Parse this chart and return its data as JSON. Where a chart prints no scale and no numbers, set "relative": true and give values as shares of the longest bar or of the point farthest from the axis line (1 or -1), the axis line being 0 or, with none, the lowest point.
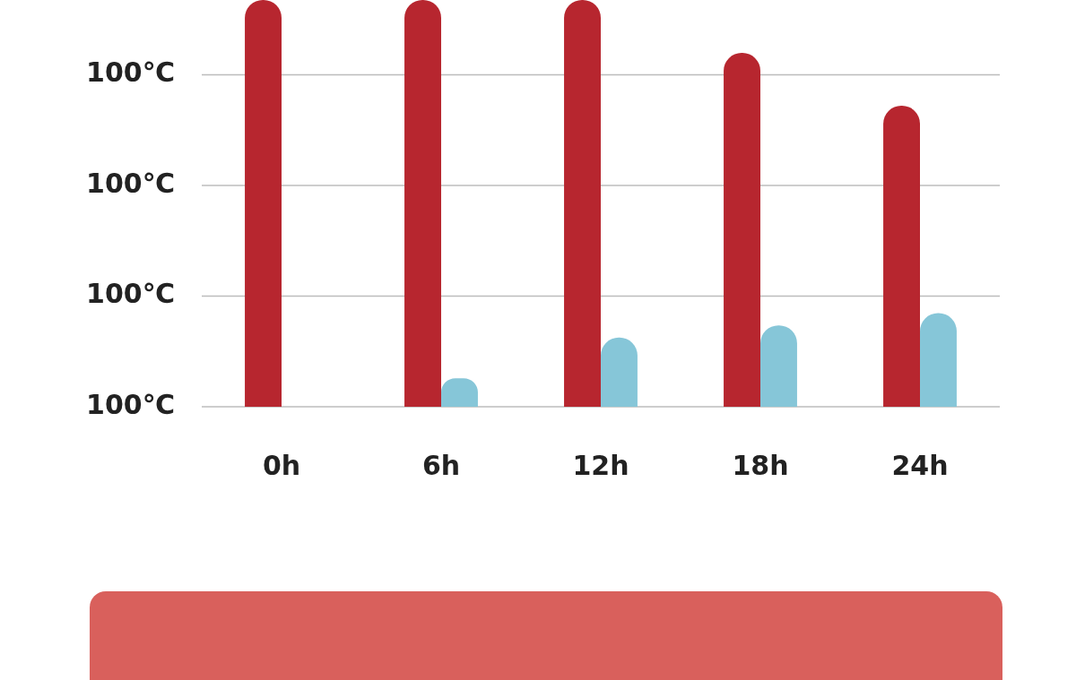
{
  "chart_data": {
    "type": "bar",
    "categories": [
      "0h",
      "6h",
      "12h",
      "18h",
      "24h"
    ],
    "series": [
      {
        "color": "#b7262f",
        "values": [
          1,
          1,
          1,
          0.87,
          0.74
        ]
      },
      {
        "color": "#86c6d8",
        "values": [
          null,
          0.07,
          0.17,
          0.2,
          0.23
        ]
      }
    ],
    "relative": true,
    "annotations": [
      "100℃",
      "100℃",
      "100℃",
      "100℃"
    ],
    "grid": "y",
    "legend": false
  }
}
